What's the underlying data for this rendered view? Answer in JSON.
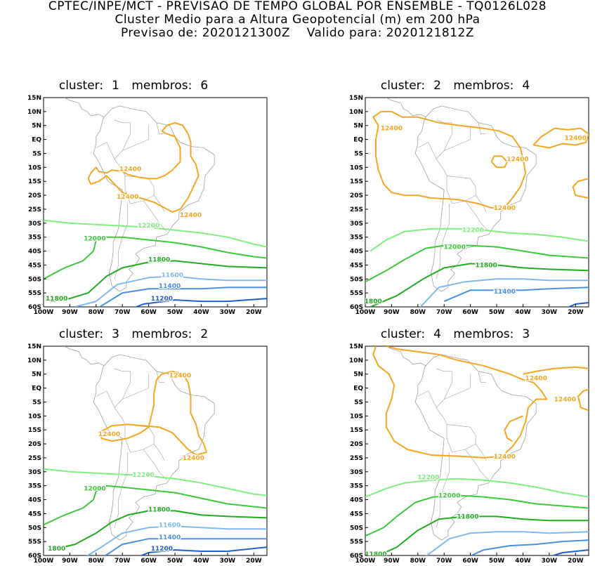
{
  "header": {
    "line1": "CPTEC/INPE/MCT - PREVISAO DE TEMPO GLOBAL POR ENSEMBLE - TQ0126L028",
    "line2": "Cluster Medio para a Altura Geopotencial (m) em 200 hPa",
    "line3_label_a": "Previsao de: 2020121300Z",
    "line3_label_b": "Valido para: 2020121812Z"
  },
  "panels": [
    {
      "cluster_label": "cluster:",
      "cluster": "1",
      "membros_label": "membros:",
      "membros": "6",
      "labels": [
        "12400",
        "12400",
        "12400",
        "12200",
        "12000",
        "11800",
        "11600",
        "11400",
        "11200",
        "11800"
      ]
    },
    {
      "cluster_label": "cluster:",
      "cluster": "2",
      "membros_label": "membros:",
      "membros": "4",
      "labels": [
        "12400",
        "12400",
        "12400",
        "12400",
        "12200",
        "12000",
        "11800",
        "11400",
        "1800"
      ]
    },
    {
      "cluster_label": "cluster:",
      "cluster": "3",
      "membros_label": "membros:",
      "membros": "2",
      "labels": [
        "12400",
        "12400",
        "12400",
        "12200",
        "12000",
        "11800",
        "11600",
        "11400",
        "11200",
        "1800"
      ]
    },
    {
      "cluster_label": "cluster:",
      "cluster": "4",
      "membros_label": "membros:",
      "membros": "3",
      "labels": [
        "12400",
        "12400",
        "12400",
        "12200",
        "12000",
        "11800",
        "11800"
      ]
    }
  ],
  "y_ticks": [
    "15N",
    "10N",
    "5N",
    "EQ",
    "5S",
    "10S",
    "15S",
    "20S",
    "25S",
    "30S",
    "35S",
    "40S",
    "45S",
    "50S",
    "55S",
    "60S"
  ],
  "x_ticks": [
    "100W",
    "90W",
    "80W",
    "70W",
    "60W",
    "50W",
    "40W",
    "30W",
    "20W"
  ],
  "colors": {
    "c12400": "#f5a623",
    "c12200": "#80ee80",
    "c12000": "#3cc83c",
    "c11800": "#22aa22",
    "c11600": "#80b8f0",
    "c11400": "#4a90e0",
    "c11200": "#2060c8",
    "coast": "#a0a0a0"
  }
}
